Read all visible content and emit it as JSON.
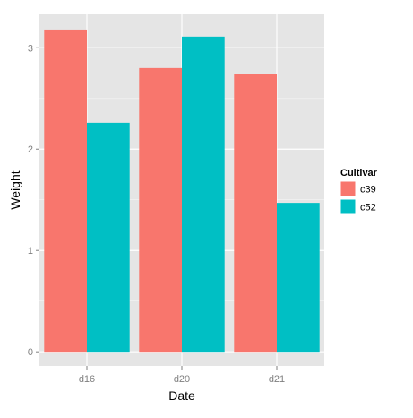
{
  "chart_data": {
    "type": "bar",
    "categories": [
      "d16",
      "d20",
      "d21"
    ],
    "series": [
      {
        "name": "c39",
        "values": [
          3.18,
          2.8,
          2.74
        ]
      },
      {
        "name": "c52",
        "values": [
          2.26,
          3.11,
          1.47
        ]
      }
    ],
    "xlabel": "Date",
    "ylabel": "Weight",
    "ylim": [
      -0.14,
      3.33
    ],
    "yticks": [
      0,
      1,
      2,
      3
    ],
    "ytick_labels": [
      "0",
      "1",
      "2",
      "3"
    ],
    "grid": true,
    "legend": {
      "title": "Cultivar",
      "placement": "right"
    },
    "colors": {
      "c39": "#F8766D",
      "c52": "#00BFC4",
      "panel_background": "#E5E5E5",
      "grid": "#FFFFFF"
    }
  }
}
